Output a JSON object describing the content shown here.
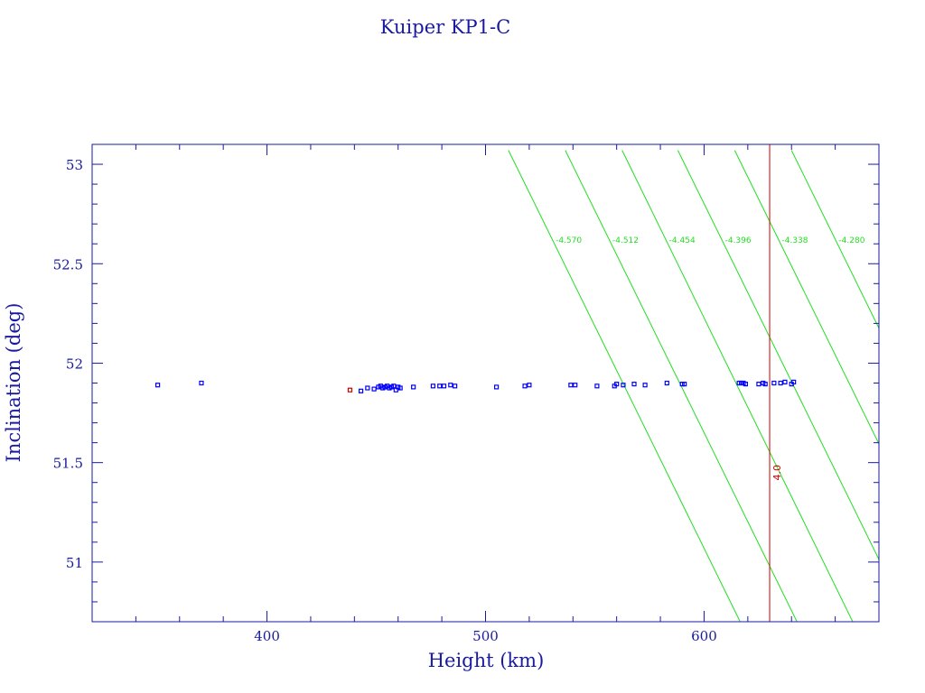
{
  "colors": {
    "frame": "#1a1aa0",
    "points": "#0000ff",
    "highlight_point": "#cc0000",
    "contours": "#22dd22",
    "marker_line": "#cc0000"
  },
  "chart_data": {
    "type": "scatter",
    "title": "Kuiper KP1-C",
    "xlabel": "Height (km)",
    "ylabel": "Inclination (deg)",
    "xlim": [
      320,
      680
    ],
    "ylim": [
      50.7,
      53.1
    ],
    "x_ticks": [
      400,
      500,
      600
    ],
    "y_ticks": [
      51,
      51.5,
      52,
      52.5,
      53
    ],
    "grid": false,
    "points": [
      {
        "x": 350,
        "y": 51.89
      },
      {
        "x": 370,
        "y": 51.9
      },
      {
        "x": 443,
        "y": 51.86
      },
      {
        "x": 446,
        "y": 51.875
      },
      {
        "x": 449,
        "y": 51.87
      },
      {
        "x": 451,
        "y": 51.88
      },
      {
        "x": 452,
        "y": 51.885
      },
      {
        "x": 453,
        "y": 51.875
      },
      {
        "x": 454,
        "y": 51.88
      },
      {
        "x": 455,
        "y": 51.885
      },
      {
        "x": 456,
        "y": 51.875
      },
      {
        "x": 457,
        "y": 51.88
      },
      {
        "x": 458,
        "y": 51.885
      },
      {
        "x": 459,
        "y": 51.865
      },
      {
        "x": 460,
        "y": 51.88
      },
      {
        "x": 461,
        "y": 51.875
      },
      {
        "x": 467,
        "y": 51.88
      },
      {
        "x": 476,
        "y": 51.885
      },
      {
        "x": 479,
        "y": 51.885
      },
      {
        "x": 481,
        "y": 51.885
      },
      {
        "x": 484,
        "y": 51.89
      },
      {
        "x": 486,
        "y": 51.885
      },
      {
        "x": 505,
        "y": 51.88
      },
      {
        "x": 518,
        "y": 51.885
      },
      {
        "x": 520,
        "y": 51.89
      },
      {
        "x": 539,
        "y": 51.89
      },
      {
        "x": 541,
        "y": 51.89
      },
      {
        "x": 551,
        "y": 51.885
      },
      {
        "x": 559,
        "y": 51.885
      },
      {
        "x": 560,
        "y": 51.895
      },
      {
        "x": 563,
        "y": 51.89
      },
      {
        "x": 568,
        "y": 51.895
      },
      {
        "x": 573,
        "y": 51.89
      },
      {
        "x": 583,
        "y": 51.9
      },
      {
        "x": 590,
        "y": 51.895
      },
      {
        "x": 591,
        "y": 51.895
      },
      {
        "x": 616,
        "y": 51.9
      },
      {
        "x": 617,
        "y": 51.9
      },
      {
        "x": 618,
        "y": 51.9
      },
      {
        "x": 619,
        "y": 51.895
      },
      {
        "x": 625,
        "y": 51.895
      },
      {
        "x": 627,
        "y": 51.9
      },
      {
        "x": 628,
        "y": 51.895
      },
      {
        "x": 632,
        "y": 51.9
      },
      {
        "x": 635,
        "y": 51.9
      },
      {
        "x": 637,
        "y": 51.905
      },
      {
        "x": 640,
        "y": 51.895
      },
      {
        "x": 641,
        "y": 51.905
      }
    ],
    "highlight_points": [
      {
        "x": 438,
        "y": 51.865
      }
    ],
    "contours": [
      {
        "label": "-4.570",
        "x_top": 510.5,
        "x_bottom": 616.5
      },
      {
        "label": "-4.512",
        "x_top": 536.5,
        "x_bottom": 642.5
      },
      {
        "label": "-4.454",
        "x_top": 562.5,
        "x_bottom": 668.0
      },
      {
        "label": "-4.396",
        "x_top": 588.0,
        "x_bottom": 694.0
      },
      {
        "label": "-4.338",
        "x_top": 614.0,
        "x_bottom": 720.0
      },
      {
        "label": "-4.280",
        "x_top": 640.0,
        "x_bottom": 746.0
      }
    ],
    "contour_label_y": 52.62,
    "contour_top_y": 53.07,
    "marker": {
      "x": 630,
      "label": "4.0",
      "label_y": 51.45
    }
  }
}
